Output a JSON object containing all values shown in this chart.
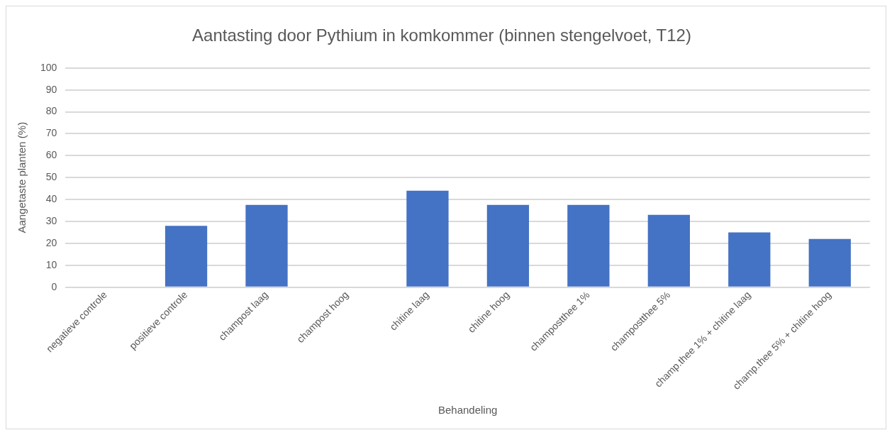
{
  "chart_data": {
    "type": "bar",
    "title": "Aantasting door Pythium in komkommer (binnen stengelvoet, T12)",
    "xlabel": "Behandeling",
    "ylabel": "Aangetaste planten (%)",
    "categories": [
      "negatieve controle",
      "positieve controle",
      "champost laag",
      "champost hoog",
      "chitine laag",
      "chitine hoog",
      "champostthee 1%",
      "champostthee 5%",
      "champ.thee 1% + chitine laag",
      "champ.thee 5% + chitine hoog"
    ],
    "values": [
      0,
      28,
      37.5,
      0,
      44,
      37.5,
      37.5,
      33,
      25,
      22
    ],
    "color": "#4472c4",
    "ylim": [
      0,
      100
    ],
    "yticks": [
      0,
      10,
      20,
      30,
      40,
      50,
      60,
      70,
      80,
      90,
      100
    ],
    "grid": "y"
  }
}
